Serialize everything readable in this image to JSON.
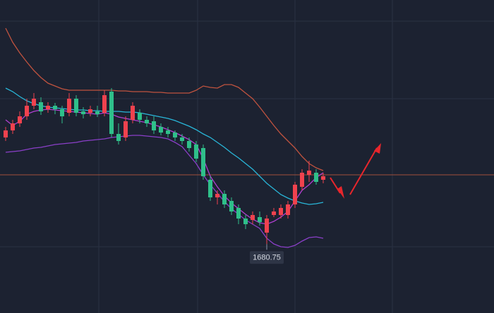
{
  "chart_data": {
    "type": "candlestick",
    "ylim": [
      1661.2,
      1750
    ],
    "up_color": "#f0424e",
    "down_color": "#2fbf8a",
    "open": [
      1711,
      1713,
      1715,
      1717,
      1720,
      1721,
      1719,
      1720,
      1719,
      1718,
      1722,
      1718.4,
      1718,
      1718.4,
      1718,
      1724,
      1712,
      1711,
      1716,
      1718,
      1716,
      1715.6,
      1714,
      1713,
      1712.4,
      1711,
      1710,
      1709,
      1708,
      1699,
      1694,
      1695,
      1693,
      1691,
      1688,
      1687.6,
      1688.4,
      1684,
      1689,
      1689,
      1689,
      1692,
      1697,
      1700.4,
      1701,
      1699
    ],
    "high": [
      1714,
      1716,
      1718.4,
      1722,
      1723.6,
      1722.4,
      1721,
      1720.8,
      1720,
      1723.6,
      1723,
      1719.6,
      1720,
      1720,
      1724.4,
      1725,
      1715,
      1717,
      1721,
      1719,
      1717,
      1717,
      1715,
      1714,
      1713,
      1712,
      1711,
      1710,
      1709,
      1700,
      1696,
      1696,
      1694,
      1692,
      1689,
      1690,
      1690,
      1689,
      1691,
      1692,
      1693,
      1698.4,
      1702,
      1704.4,
      1702,
      1701
    ],
    "low": [
      1710,
      1712,
      1714,
      1716,
      1719,
      1717.4,
      1718,
      1717.6,
      1715,
      1717,
      1717,
      1716.4,
      1717,
      1716.8,
      1717,
      1711,
      1709,
      1710,
      1715,
      1715,
      1714,
      1712,
      1711.6,
      1711,
      1710,
      1709,
      1707,
      1704,
      1699,
      1693,
      1692,
      1691,
      1689,
      1686.4,
      1685,
      1686.4,
      1686,
      1680.75,
      1688.4,
      1688,
      1688,
      1691,
      1696,
      1698.4,
      1697.6,
      1698
    ],
    "close": [
      1713,
      1715,
      1717,
      1720,
      1722,
      1718.4,
      1720,
      1719,
      1717,
      1722,
      1718,
      1717.6,
      1719,
      1717.6,
      1723,
      1712,
      1710,
      1715.6,
      1720,
      1716,
      1715,
      1713,
      1712.4,
      1712,
      1711,
      1710,
      1708,
      1705,
      1700,
      1694,
      1695,
      1692,
      1690,
      1688,
      1686.4,
      1689,
      1687,
      1688,
      1690,
      1691,
      1692,
      1697.6,
      1701,
      1701.6,
      1698.4,
      1700
    ],
    "lines": [
      {
        "color": "#c0533f",
        "values": [
          1742,
          1738,
          1735,
          1732.4,
          1730,
          1728,
          1726.4,
          1725.6,
          1724.8,
          1724.4,
          1724.4,
          1724.4,
          1724.4,
          1724.4,
          1724.4,
          1724.4,
          1724.2,
          1724.2,
          1724,
          1724,
          1724,
          1723.8,
          1723.8,
          1723.6,
          1723.6,
          1723.6,
          1723.6,
          1724.4,
          1725.6,
          1725.2,
          1725,
          1726,
          1726,
          1725.2,
          1723.6,
          1722,
          1719.6,
          1717,
          1714.4,
          1712,
          1710,
          1708,
          1705.6,
          1703.6,
          1702.4,
          1701.6
        ]
      },
      {
        "color": "#29b6d8",
        "values": [
          1725,
          1724,
          1722.6,
          1721.4,
          1720.6,
          1720,
          1719.6,
          1719.4,
          1719.2,
          1719,
          1718.8,
          1718.8,
          1718.6,
          1718.6,
          1718.4,
          1718.4,
          1718.4,
          1718.2,
          1718.2,
          1718,
          1717.6,
          1717.2,
          1716.8,
          1716.4,
          1715.8,
          1715,
          1714.2,
          1713.2,
          1712,
          1711,
          1709.6,
          1708.2,
          1706.6,
          1705.2,
          1703.6,
          1702,
          1700,
          1698,
          1696.4,
          1694.8,
          1693.8,
          1693,
          1692.4,
          1692,
          1692.2,
          1692.6
        ]
      },
      {
        "color": "#b03fd0",
        "values": [
          1716,
          1714.4,
          1715.6,
          1717.6,
          1718.4,
          1718.8,
          1719,
          1718.8,
          1718.6,
          1718.4,
          1718.2,
          1718,
          1717.8,
          1717.6,
          1718,
          1717.6,
          1716.8,
          1716.4,
          1716,
          1715.6,
          1715.2,
          1714.6,
          1714,
          1713.2,
          1712.4,
          1711.4,
          1710.4,
          1709,
          1705,
          1700,
          1697,
          1694.4,
          1692.4,
          1690.8,
          1689.2,
          1687.8,
          1686.8,
          1686.4,
          1687.2,
          1688.4,
          1690,
          1693,
          1696,
          1697.6,
          1699.6,
          1701
        ]
      },
      {
        "color": "#8a3fc8",
        "values": [
          1706.8,
          1707,
          1707.2,
          1707.6,
          1708,
          1708.2,
          1708.6,
          1709,
          1709.2,
          1709.4,
          1709.6,
          1710,
          1710.2,
          1710.4,
          1710.6,
          1711,
          1711.2,
          1711.4,
          1711.6,
          1711.6,
          1711.4,
          1711.2,
          1711,
          1710.6,
          1709.6,
          1708.4,
          1706,
          1703.6,
          1700.4,
          1697.6,
          1695.2,
          1692.8,
          1690.8,
          1689.2,
          1687.6,
          1686.4,
          1685.2,
          1682.4,
          1680.8,
          1680,
          1679.8,
          1680.4,
          1681.6,
          1682.6,
          1682.8,
          1682.4
        ]
      }
    ],
    "price_line": {
      "value": 1700.4,
      "color": "#a0503c"
    },
    "low_marker": {
      "value": 1680.75,
      "label": "1680.75"
    }
  }
}
